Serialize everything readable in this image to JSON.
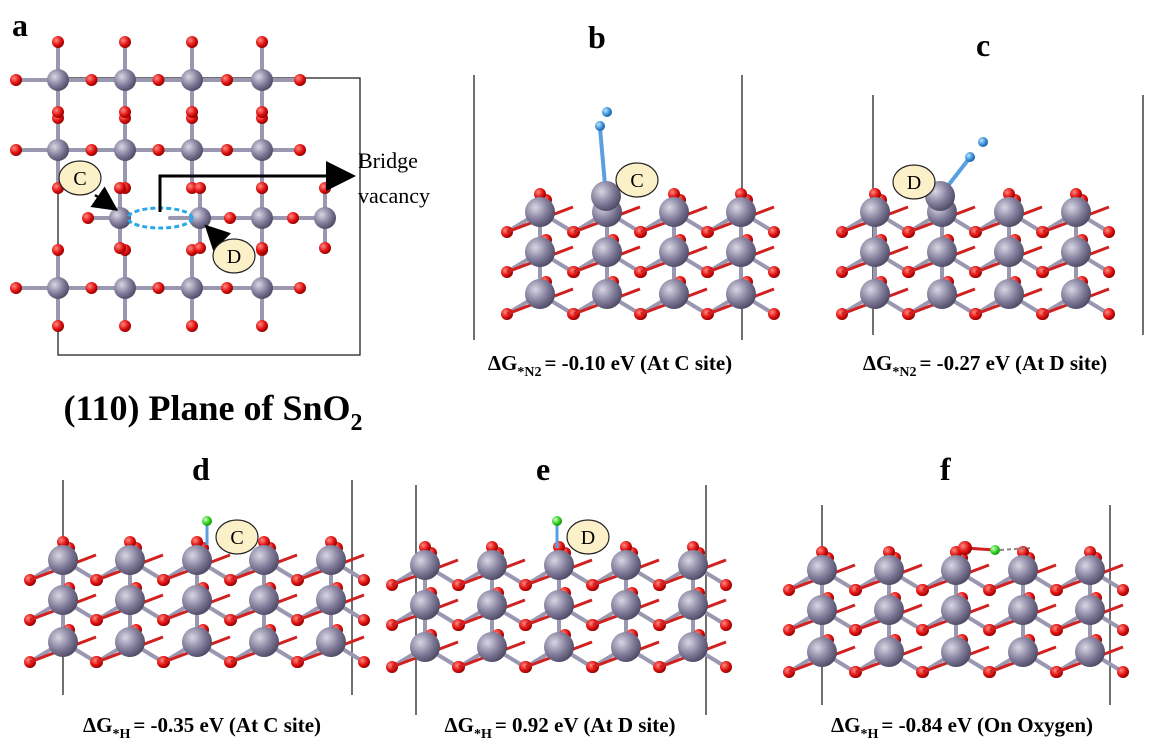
{
  "panels": [
    {
      "label": "a",
      "site_labels": [
        "C",
        "D"
      ],
      "annotation": [
        "Bridge",
        "vacancy"
      ],
      "caption": {
        "text": "(110) Plane of SnO",
        "sub": "2"
      }
    },
    {
      "label": "b",
      "site_label": "C",
      "caption": {
        "symbol": "ΔG",
        "sub": "*N2",
        "text": "= -0.10 eV (At C site)"
      }
    },
    {
      "label": "c",
      "site_label": "D",
      "caption": {
        "symbol": "ΔG",
        "sub": "*N2",
        "text": "= -0.27 eV (At D site)"
      }
    },
    {
      "label": "d",
      "site_label": "C",
      "caption": {
        "symbol": "ΔG",
        "sub": "*H",
        "text": "= -0.35 eV (At C site)"
      }
    },
    {
      "label": "e",
      "site_label": "D",
      "caption": {
        "symbol": "ΔG",
        "sub": "*H",
        "text": "= 0.92 eV (At D site)"
      }
    },
    {
      "label": "f",
      "caption": {
        "symbol": "ΔG",
        "sub": "*H",
        "text": "= -0.84 eV (On Oxygen)"
      }
    }
  ]
}
